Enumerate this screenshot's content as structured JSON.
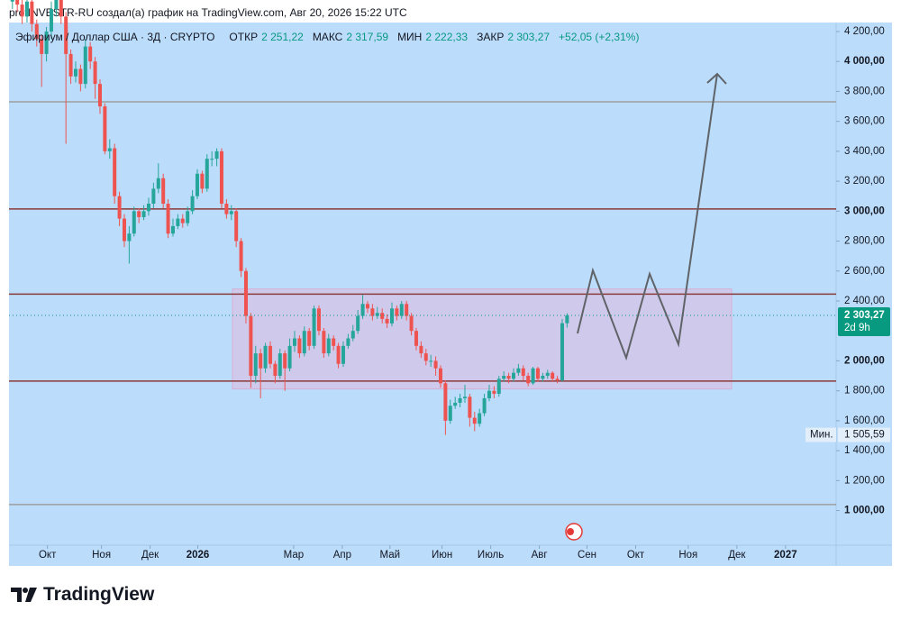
{
  "header": "profINVESTR-RU создал(а) график на TradingView.com, Авг 20, 2026 15:22 UTC",
  "footer": "TradingView",
  "chart_data": {
    "type": "candlestick",
    "legend": {
      "symbol": "Эфириум / Доллар США · 3Д · CRYPTO",
      "labels": [
        "ОТКР",
        "МАКС",
        "МИН",
        "ЗАКР"
      ],
      "value_labels": [
        "2 251,22",
        "2 317,59",
        "2 222,33",
        "2 303,27"
      ],
      "change_label": "+52,05 (+2,31%)"
    },
    "up_color": "#26a69a",
    "down_color": "#ef5350",
    "open": [
      4400,
      4450,
      4380,
      4300,
      4400,
      4250,
      4150,
      4050,
      4200,
      4350,
      4450,
      4300,
      4050,
      3900,
      3950,
      3850,
      4100,
      4000,
      3850,
      3700,
      3400,
      3420,
      3100,
      2950,
      2800,
      2850,
      3000,
      2960,
      3000,
      3050,
      3150,
      3220,
      3050,
      2850,
      2900,
      2950,
      2920,
      3000,
      3100,
      3250,
      3150,
      3350,
      3350,
      3400,
      3050,
      2980,
      3000,
      2800,
      2600,
      2300,
      1900,
      2050,
      1950,
      2100,
      1980,
      1900,
      2050,
      1950,
      2100,
      2150,
      2050,
      2200,
      2100,
      2350,
      2200,
      2050,
      2150,
      2100,
      1980,
      2100,
      2150,
      2200,
      2300,
      2380,
      2350,
      2300,
      2320,
      2280,
      2250,
      2350,
      2300,
      2380,
      2300,
      2200,
      2100,
      2050,
      2000,
      2000,
      1950,
      1850,
      1600,
      1700,
      1720,
      1750,
      1760,
      1620,
      1580,
      1650,
      1750,
      1800,
      1780,
      1880,
      1900,
      1880,
      1920,
      1950,
      1900,
      1850,
      1950,
      1880,
      1900,
      1920,
      1880,
      1870,
      2251.22
    ],
    "high": [
      4500,
      4480,
      4420,
      4450,
      4430,
      4280,
      4180,
      4230,
      4400,
      4500,
      4480,
      4330,
      4080,
      4000,
      3980,
      4150,
      4130,
      4030,
      3880,
      3720,
      3480,
      3450,
      3130,
      2980,
      2900,
      3030,
      3020,
      3040,
      3090,
      3190,
      3320,
      3250,
      3080,
      2950,
      2980,
      2980,
      3030,
      3140,
      3280,
      3270,
      3380,
      3400,
      3420,
      3420,
      3080,
      3040,
      3020,
      2820,
      2620,
      2320,
      2100,
      2080,
      2120,
      2130,
      2000,
      2080,
      2070,
      2150,
      2200,
      2170,
      2230,
      2220,
      2370,
      2370,
      2220,
      2180,
      2170,
      2120,
      2130,
      2180,
      2240,
      2340,
      2440,
      2400,
      2380,
      2360,
      2350,
      2310,
      2390,
      2370,
      2400,
      2400,
      2320,
      2220,
      2130,
      2080,
      2040,
      2030,
      1970,
      1870,
      1740,
      1760,
      1780,
      1840,
      1780,
      1660,
      1680,
      1780,
      1840,
      1830,
      1900,
      1930,
      1920,
      1950,
      1980,
      1970,
      1920,
      1960,
      1960,
      1920,
      1940,
      1930,
      1900,
      2280,
      2317.59
    ],
    "low": [
      4350,
      4330,
      4250,
      4260,
      4200,
      4100,
      3830,
      4000,
      4150,
      4300,
      4250,
      3450,
      3850,
      3860,
      3800,
      3820,
      3950,
      3750,
      3650,
      3380,
      3350,
      3050,
      2900,
      2760,
      2650,
      2830,
      2920,
      2940,
      2970,
      3020,
      3120,
      3020,
      2820,
      2830,
      2880,
      2890,
      2900,
      2980,
      3080,
      3120,
      3130,
      3300,
      3300,
      3020,
      2950,
      2940,
      2760,
      2560,
      2250,
      1820,
      1850,
      1750,
      1920,
      1950,
      1850,
      1880,
      1800,
      1930,
      2060,
      2020,
      2030,
      2070,
      2080,
      2170,
      2020,
      2030,
      2070,
      1950,
      1960,
      2080,
      2130,
      2180,
      2280,
      2320,
      2270,
      2280,
      2250,
      2220,
      2230,
      2270,
      2280,
      2270,
      2170,
      2070,
      2020,
      1970,
      1960,
      1900,
      1820,
      1505.59,
      1580,
      1680,
      1690,
      1720,
      1560,
      1530,
      1560,
      1630,
      1730,
      1750,
      1760,
      1860,
      1850,
      1860,
      1900,
      1870,
      1830,
      1840,
      1860,
      1860,
      1880,
      1860,
      1850,
      1860,
      2222.33
    ],
    "close": [
      4450,
      4380,
      4300,
      4400,
      4250,
      4150,
      4050,
      4200,
      4350,
      4450,
      4300,
      4050,
      3900,
      3950,
      3850,
      4100,
      4000,
      3850,
      3700,
      3400,
      3420,
      3100,
      2950,
      2800,
      2850,
      3000,
      2960,
      3000,
      3050,
      3150,
      3220,
      3050,
      2850,
      2900,
      2950,
      2920,
      3000,
      3100,
      3250,
      3150,
      3350,
      3350,
      3400,
      3050,
      2980,
      3000,
      2800,
      2600,
      2300,
      1900,
      2050,
      1950,
      2100,
      1980,
      1900,
      2050,
      1950,
      2100,
      2150,
      2050,
      2200,
      2100,
      2350,
      2200,
      2050,
      2150,
      2100,
      1980,
      2100,
      2150,
      2200,
      2300,
      2380,
      2350,
      2300,
      2320,
      2280,
      2250,
      2350,
      2300,
      2380,
      2300,
      2200,
      2100,
      2050,
      2000,
      2000,
      1950,
      1850,
      1600,
      1700,
      1720,
      1750,
      1760,
      1620,
      1580,
      1650,
      1750,
      1800,
      1780,
      1880,
      1900,
      1880,
      1920,
      1950,
      1900,
      1850,
      1950,
      1880,
      1900,
      1920,
      1880,
      1870,
      2251.22,
      2303.27
    ],
    "xlim": [
      -0.7,
      169.3
    ],
    "xticks": [
      {
        "value": 7.2,
        "label": "Окт"
      },
      {
        "value": 18.3,
        "label": "Ноя"
      },
      {
        "value": 28.3,
        "label": "Дек"
      },
      {
        "value": 38.1,
        "label": "2026"
      },
      {
        "value": 57.8,
        "label": "Мар"
      },
      {
        "value": 67.8,
        "label": "Апр"
      },
      {
        "value": 77.6,
        "label": "Май"
      },
      {
        "value": 88.3,
        "label": "Июн"
      },
      {
        "value": 98.3,
        "label": "Июль"
      },
      {
        "value": 108.3,
        "label": "Авг"
      },
      {
        "value": 118.1,
        "label": "Сен"
      },
      {
        "value": 128.1,
        "label": "Окт"
      },
      {
        "value": 138.9,
        "label": "Ноя"
      },
      {
        "value": 148.9,
        "label": "Дек"
      },
      {
        "value": 158.9,
        "label": "2027"
      }
    ],
    "ylim": [
      630,
      4260
    ],
    "yticks": [
      {
        "value": 4200,
        "label": "4 200,00"
      },
      {
        "value": 4000,
        "label": "4 000,00"
      },
      {
        "value": 3800,
        "label": "3 800,00"
      },
      {
        "value": 3600,
        "label": "3 600,00"
      },
      {
        "value": 3400,
        "label": "3 400,00"
      },
      {
        "value": 3200,
        "label": "3 200,00"
      },
      {
        "value": 3000,
        "label": "3 000,00"
      },
      {
        "value": 2800,
        "label": "2 800,00"
      },
      {
        "value": 2600,
        "label": "2 600,00"
      },
      {
        "value": 2400,
        "label": "2 400,00"
      },
      {
        "value": 2000,
        "label": "2 000,00"
      },
      {
        "value": 1800,
        "label": "1 800,00"
      },
      {
        "value": 1600,
        "label": "1 600,00"
      },
      {
        "value": 1400,
        "label": "1 400,00"
      },
      {
        "value": 1200,
        "label": "1 200,00"
      },
      {
        "value": 1000,
        "label": "1 000,00"
      }
    ],
    "levels": [
      {
        "value": 3730,
        "color": "#9e9e9e"
      },
      {
        "value": 3015,
        "color": "#8b3a3a"
      },
      {
        "value": 2446,
        "color": "#8b3a3a"
      },
      {
        "value": 1865,
        "color": "#8b3a3a"
      },
      {
        "value": 1040,
        "color": "#9e9e9e"
      }
    ],
    "zone": {
      "from": 1812,
      "to": 2480,
      "color": "rgba(236,176,214,0.42)"
    },
    "last_price": {
      "value": 2303.27,
      "label": "2 303,27",
      "countdown": "2d 9h",
      "color": "#089981"
    },
    "low_marker": {
      "label": "Мин.",
      "value": 1505.59,
      "value_label": "1 505,59"
    }
  }
}
